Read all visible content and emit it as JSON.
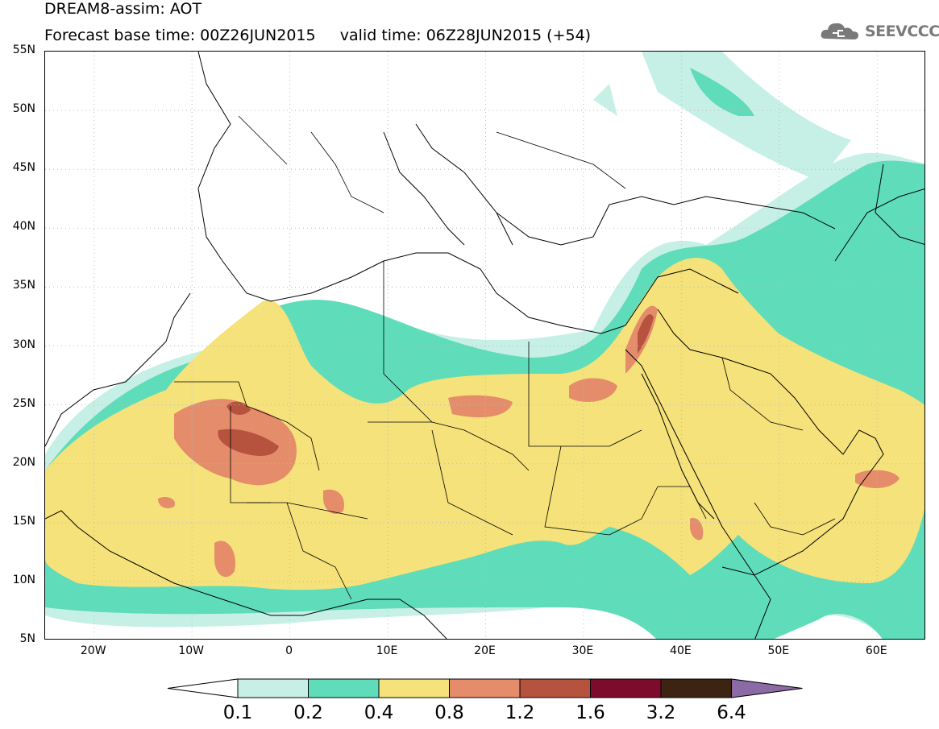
{
  "header": {
    "title": "DREAM8-assim: AOT",
    "subtitle": "Forecast base time: 00Z26JUN2015     valid time: 06Z28JUN2015 (+54)"
  },
  "logo": {
    "text": "SEEVCCC",
    "icon": "cloud-icon"
  },
  "map": {
    "lat_labels": [
      "55N",
      "50N",
      "45N",
      "40N",
      "35N",
      "30N",
      "25N",
      "20N",
      "15N",
      "10N",
      "5N"
    ],
    "lon_labels": [
      "20W",
      "10W",
      "0",
      "10E",
      "20E",
      "30E",
      "40E",
      "50E",
      "60E"
    ],
    "lon_range": [
      -25,
      65
    ],
    "lat_range": [
      5,
      55
    ]
  },
  "colorbar": {
    "labels": [
      "0.1",
      "0.2",
      "0.4",
      "0.8",
      "1.2",
      "1.6",
      "3.2",
      "6.4"
    ],
    "colors": [
      "#ffffff",
      "#c6f0e6",
      "#5fdcb9",
      "#f5e27a",
      "#e58c6a",
      "#b5533e",
      "#7d0c2c",
      "#3d2412",
      "#8c6aa6"
    ]
  }
}
